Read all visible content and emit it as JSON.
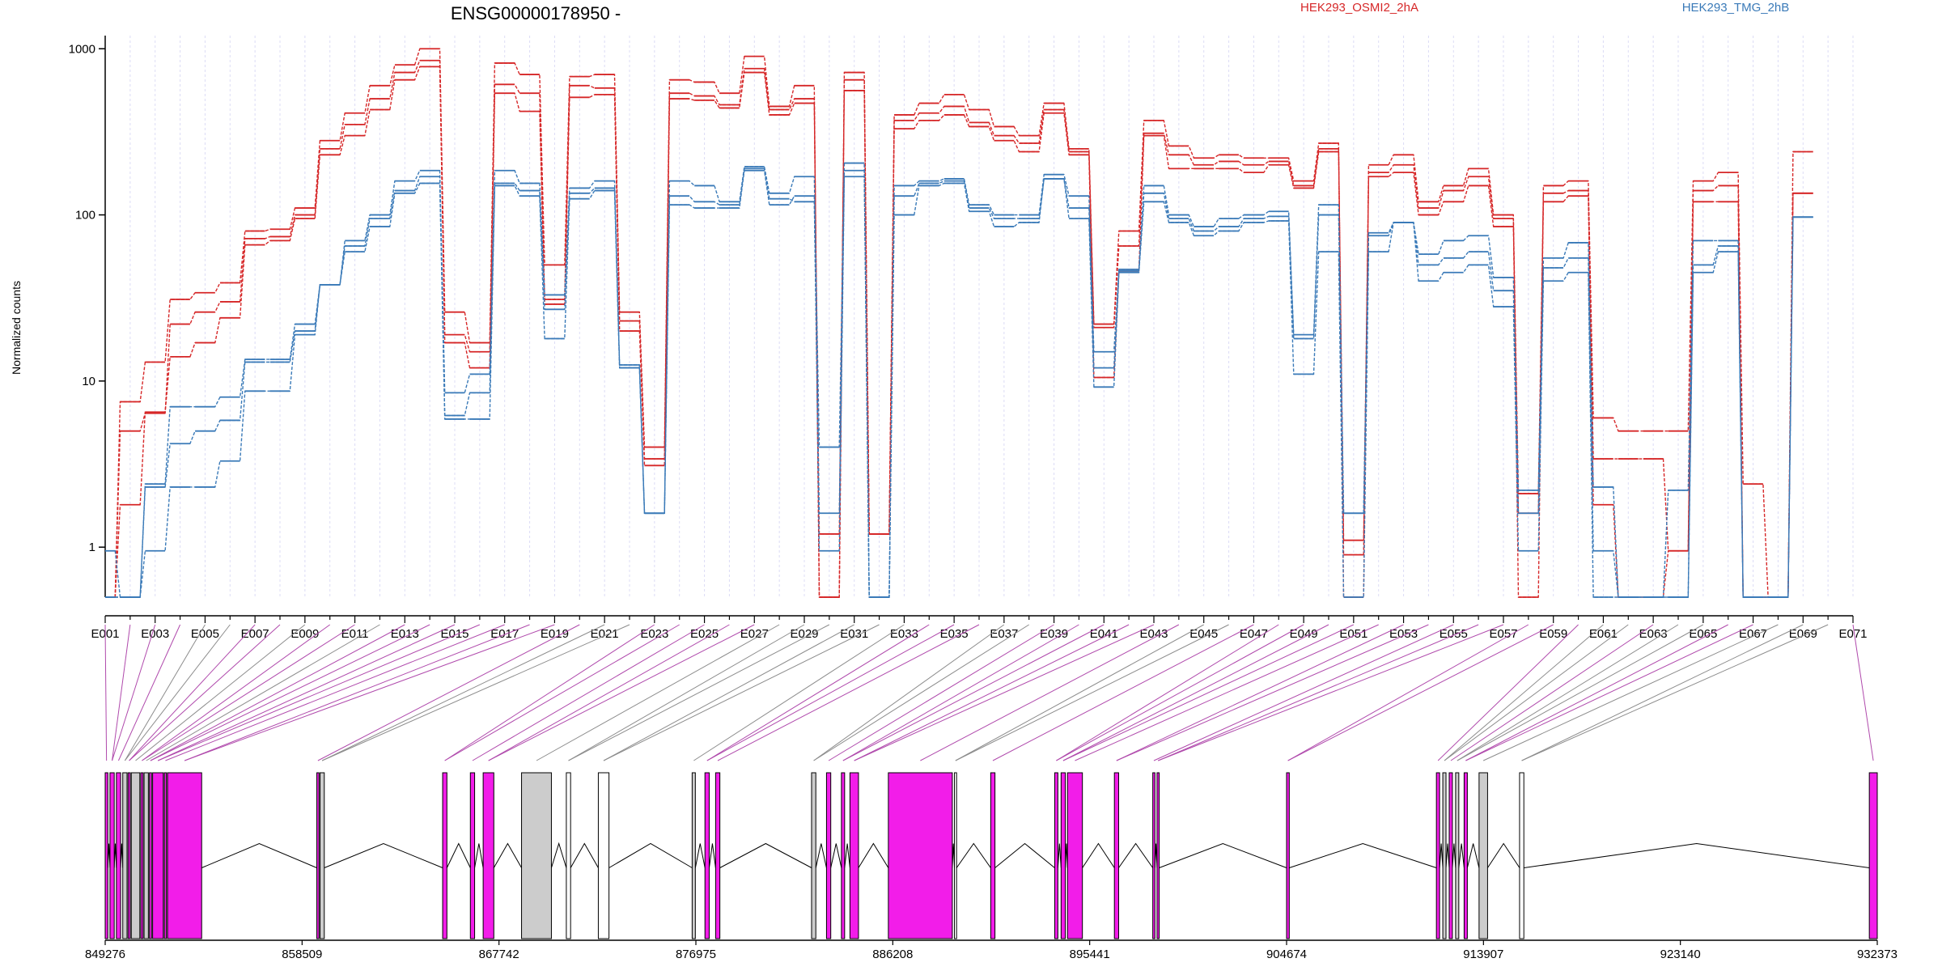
{
  "chart_data": {
    "type": "line",
    "title": "ENSG00000178950 -",
    "ylabel": "Normalized counts",
    "yscale": "log",
    "ylim": [
      0.5,
      1200
    ],
    "yticks": [
      1,
      10,
      100,
      1000
    ],
    "ytick_labels": [
      "1",
      "10",
      "100",
      "1000"
    ],
    "exon_ids": [
      "E001",
      "E002",
      "E003",
      "E004",
      "E005",
      "E006",
      "E007",
      "E008",
      "E009",
      "E010",
      "E011",
      "E012",
      "E013",
      "E014",
      "E015",
      "E016",
      "E017",
      "E018",
      "E019",
      "E020",
      "E021",
      "E022",
      "E023",
      "E024",
      "E025",
      "E026",
      "E027",
      "E028",
      "E029",
      "E030",
      "E031",
      "E032",
      "E033",
      "E034",
      "E035",
      "E036",
      "E037",
      "E038",
      "E039",
      "E040",
      "E041",
      "E042",
      "E043",
      "E044",
      "E045",
      "E046",
      "E047",
      "E048",
      "E049",
      "E050",
      "E051",
      "E052",
      "E053",
      "E054",
      "E055",
      "E056",
      "E057",
      "E058",
      "E059",
      "E060",
      "E061",
      "E062",
      "E063",
      "E064",
      "E065",
      "E066",
      "E067",
      "E068",
      "E069",
      "E070",
      "E071"
    ],
    "exon_tick_labels": [
      "E001",
      "E003",
      "E005",
      "E007",
      "E009",
      "E011",
      "E013",
      "E015",
      "E017",
      "E019",
      "E021",
      "E023",
      "E025",
      "E027",
      "E029",
      "E031",
      "E033",
      "E035",
      "E037",
      "E039",
      "E041",
      "E043",
      "E045",
      "E047",
      "E049",
      "E051",
      "E053",
      "E055",
      "E057",
      "E059",
      "E061",
      "E063",
      "E065",
      "E067",
      "E069",
      "E071"
    ],
    "legend": [
      {
        "name": "HEK293_OSMI2_2hA",
        "color": "#d62728"
      },
      {
        "name": "HEK293_TMG_2hB",
        "color": "#3a7ab8"
      }
    ],
    "series": [
      {
        "group": "HEK293_OSMI2_2hA",
        "color": "#d62728",
        "values": [
          0.5,
          7.5,
          13,
          31,
          34,
          39,
          80,
          82,
          110,
          280,
          410,
          600,
          800,
          1000,
          26,
          17,
          820,
          700,
          50,
          680,
          700,
          26,
          4,
          650,
          630,
          540,
          900,
          450,
          600,
          0.5,
          720,
          1.2,
          400,
          470,
          530,
          430,
          340,
          300,
          470,
          250,
          22,
          80,
          370,
          260,
          220,
          230,
          220,
          220,
          160,
          270,
          0.5,
          200,
          230,
          120,
          150,
          190,
          100,
          0.5,
          150,
          160,
          6,
          5,
          5,
          5,
          160,
          180,
          2.4,
          0.5,
          240
        ]
      },
      {
        "group": "HEK293_OSMI2_2hA",
        "color": "#d62728",
        "values": [
          0.5,
          5,
          6.4,
          22,
          26,
          30,
          72,
          74,
          100,
          250,
          350,
          500,
          720,
          850,
          19,
          15,
          610,
          540,
          31,
          600,
          580,
          23,
          3.4,
          540,
          520,
          460,
          760,
          430,
          500,
          0.5,
          650,
          1.2,
          370,
          410,
          450,
          360,
          300,
          270,
          430,
          240,
          21,
          65,
          310,
          230,
          200,
          210,
          200,
          210,
          150,
          250,
          1.1,
          180,
          200,
          110,
          140,
          170,
          95,
          2.1,
          135,
          140,
          3.4,
          3.4,
          3.4,
          0.95,
          140,
          150,
          0.5,
          0.5,
          135
        ]
      },
      {
        "group": "HEK293_OSMI2_2hA",
        "color": "#d62728",
        "values": [
          0.5,
          1.8,
          6.5,
          14,
          17,
          24,
          66,
          70,
          95,
          230,
          300,
          430,
          650,
          780,
          17,
          12,
          540,
          420,
          29,
          510,
          530,
          20,
          3.1,
          500,
          490,
          440,
          720,
          400,
          470,
          1.2,
          560,
          1.2,
          330,
          370,
          400,
          340,
          280,
          240,
          410,
          230,
          10.5,
          46,
          300,
          190,
          190,
          190,
          180,
          200,
          145,
          240,
          0.9,
          170,
          180,
          100,
          120,
          150,
          85,
          1.6,
          120,
          130,
          1.8,
          0.5,
          0.5,
          0.95,
          120,
          120,
          0.5,
          0.5,
          135
        ]
      },
      {
        "group": "HEK293_TMG_2hB",
        "color": "#3a7ab8",
        "values": [
          0.95,
          0.5,
          2.4,
          7,
          7,
          8,
          13.5,
          13.5,
          22,
          38,
          70,
          100,
          160,
          185,
          8.5,
          11,
          185,
          155,
          33,
          145,
          160,
          12.5,
          1.6,
          160,
          150,
          120,
          195,
          135,
          170,
          4,
          205,
          0.5,
          150,
          160,
          165,
          115,
          100,
          100,
          175,
          130,
          15,
          47,
          150,
          100,
          85,
          95,
          100,
          105,
          19,
          115,
          1.6,
          78,
          90,
          58,
          70,
          75,
          42,
          2.2,
          55,
          68,
          2.3,
          0.5,
          0.5,
          2.2,
          70,
          70,
          0.5,
          0.5,
          97
        ]
      },
      {
        "group": "HEK293_TMG_2hB",
        "color": "#3a7ab8",
        "values": [
          0.5,
          0.5,
          2.3,
          4.2,
          5,
          5.8,
          13,
          13,
          20,
          38,
          65,
          95,
          140,
          170,
          6.2,
          8.5,
          155,
          140,
          27,
          135,
          145,
          12,
          1.6,
          130,
          120,
          115,
          190,
          125,
          120,
          1.6,
          185,
          0.5,
          130,
          155,
          160,
          110,
          95,
          95,
          165,
          110,
          12,
          46,
          135,
          95,
          80,
          85,
          95,
          98,
          18,
          100,
          1.6,
          75,
          90,
          50,
          55,
          60,
          35,
          1.6,
          48,
          55,
          0.95,
          0.5,
          0.5,
          0.5,
          50,
          65,
          0.5,
          0.5,
          97
        ]
      },
      {
        "group": "HEK293_TMG_2hB",
        "color": "#3a7ab8",
        "values": [
          0.5,
          0.5,
          0.95,
          2.3,
          2.3,
          3.3,
          8.7,
          8.7,
          19,
          38,
          60,
          85,
          135,
          155,
          5.9,
          5.9,
          150,
          130,
          18,
          125,
          140,
          12,
          1.6,
          115,
          110,
          110,
          185,
          115,
          130,
          0.95,
          170,
          0.5,
          100,
          150,
          155,
          105,
          85,
          90,
          165,
          95,
          9.2,
          45,
          120,
          90,
          75,
          80,
          90,
          92,
          11,
          60,
          0.5,
          60,
          90,
          40,
          45,
          50,
          28,
          0.95,
          40,
          45,
          0.5,
          0.5,
          0.5,
          0.5,
          45,
          60,
          0.5,
          0.5,
          97
        ]
      }
    ],
    "gene_model": {
      "coord_ticks": [
        849276,
        858509,
        867742,
        876975,
        886208,
        895441,
        904674,
        913907,
        923140,
        932373
      ],
      "coord_tick_labels": [
        "849276",
        "858509",
        "867742",
        "876975",
        "886208",
        "895441",
        "904674",
        "913907",
        "923140",
        "932373"
      ],
      "exon_fill": "#f21de9",
      "intron_fill": "#cccccc",
      "exons": [
        {
          "start": 849276,
          "end": 849400,
          "kind": "exon"
        },
        {
          "start": 849500,
          "end": 849700,
          "kind": "exon"
        },
        {
          "start": 849800,
          "end": 850000,
          "kind": "exon"
        },
        {
          "start": 850100,
          "end": 850300,
          "kind": "intron"
        },
        {
          "start": 850350,
          "end": 850450,
          "kind": "exon"
        },
        {
          "start": 850500,
          "end": 850900,
          "kind": "intron"
        },
        {
          "start": 850950,
          "end": 851050,
          "kind": "exon"
        },
        {
          "start": 851100,
          "end": 851300,
          "kind": "intron"
        },
        {
          "start": 851350,
          "end": 851450,
          "kind": "exon"
        },
        {
          "start": 851500,
          "end": 852000,
          "kind": "exon"
        },
        {
          "start": 852050,
          "end": 852150,
          "kind": "exon"
        },
        {
          "start": 852200,
          "end": 853800,
          "kind": "exon"
        },
        {
          "start": 859200,
          "end": 859300,
          "kind": "exon"
        },
        {
          "start": 859350,
          "end": 859550,
          "kind": "intron"
        },
        {
          "start": 865100,
          "end": 865300,
          "kind": "exon"
        },
        {
          "start": 866400,
          "end": 866600,
          "kind": "exon"
        },
        {
          "start": 867000,
          "end": 867500,
          "kind": "exon"
        },
        {
          "start": 868800,
          "end": 870200,
          "kind": "intron"
        },
        {
          "start": 870900,
          "end": 871100,
          "kind": "none"
        },
        {
          "start": 872400,
          "end": 872900,
          "kind": "none"
        },
        {
          "start": 876800,
          "end": 876950,
          "kind": "intron"
        },
        {
          "start": 877400,
          "end": 877600,
          "kind": "exon"
        },
        {
          "start": 877900,
          "end": 878100,
          "kind": "exon"
        },
        {
          "start": 882400,
          "end": 882600,
          "kind": "intron"
        },
        {
          "start": 883100,
          "end": 883300,
          "kind": "exon"
        },
        {
          "start": 883800,
          "end": 883950,
          "kind": "exon"
        },
        {
          "start": 884200,
          "end": 884600,
          "kind": "exon"
        },
        {
          "start": 886000,
          "end": 889000,
          "kind": "exon"
        },
        {
          "start": 889100,
          "end": 889200,
          "kind": "none"
        },
        {
          "start": 890800,
          "end": 891000,
          "kind": "exon"
        },
        {
          "start": 893800,
          "end": 893950,
          "kind": "exon"
        },
        {
          "start": 894100,
          "end": 894300,
          "kind": "exon"
        },
        {
          "start": 894400,
          "end": 895100,
          "kind": "exon"
        },
        {
          "start": 896600,
          "end": 896800,
          "kind": "exon"
        },
        {
          "start": 898400,
          "end": 898500,
          "kind": "exon"
        },
        {
          "start": 898600,
          "end": 898700,
          "kind": "exon"
        },
        {
          "start": 904674,
          "end": 904800,
          "kind": "exon"
        },
        {
          "start": 911700,
          "end": 911850,
          "kind": "exon"
        },
        {
          "start": 912000,
          "end": 912150,
          "kind": "intron"
        },
        {
          "start": 912300,
          "end": 912450,
          "kind": "exon"
        },
        {
          "start": 912600,
          "end": 912750,
          "kind": "intron"
        },
        {
          "start": 913000,
          "end": 913150,
          "kind": "exon"
        },
        {
          "start": 913700,
          "end": 914100,
          "kind": "intron"
        },
        {
          "start": 915600,
          "end": 915800,
          "kind": "none"
        },
        {
          "start": 932000,
          "end": 932373,
          "kind": "exon"
        }
      ]
    }
  }
}
